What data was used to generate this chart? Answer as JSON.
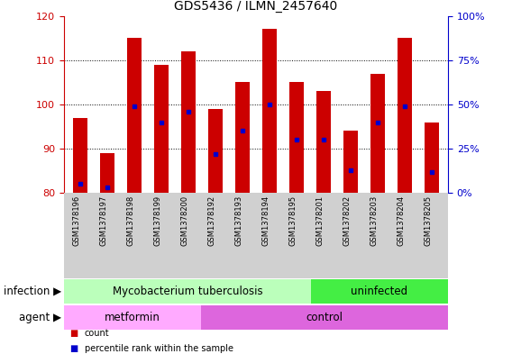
{
  "title": "GDS5436 / ILMN_2457640",
  "samples": [
    "GSM1378196",
    "GSM1378197",
    "GSM1378198",
    "GSM1378199",
    "GSM1378200",
    "GSM1378192",
    "GSM1378193",
    "GSM1378194",
    "GSM1378195",
    "GSM1378201",
    "GSM1378202",
    "GSM1378203",
    "GSM1378204",
    "GSM1378205"
  ],
  "bar_tops": [
    97,
    89,
    115,
    109,
    112,
    99,
    105,
    117,
    105,
    103,
    94,
    107,
    115,
    96
  ],
  "bar_bottom": 80,
  "percentile_values": [
    5,
    3,
    49,
    40,
    46,
    22,
    35,
    50,
    30,
    30,
    13,
    40,
    49,
    12
  ],
  "bar_color": "#cc0000",
  "dot_color": "#0000cc",
  "ylim_left": [
    80,
    120
  ],
  "ylim_right": [
    0,
    100
  ],
  "yticks_left": [
    80,
    90,
    100,
    110,
    120
  ],
  "yticks_right": [
    0,
    25,
    50,
    75,
    100
  ],
  "ytick_labels_right": [
    "0%",
    "25%",
    "50%",
    "75%",
    "100%"
  ],
  "left_axis_color": "#cc0000",
  "right_axis_color": "#0000cc",
  "grid_color": "#000000",
  "background_color": "#ffffff",
  "plot_bg_color": "#ffffff",
  "infection_groups": [
    {
      "label": "Mycobacterium tuberculosis",
      "start": 0,
      "end": 9,
      "color": "#bbffbb"
    },
    {
      "label": "uninfected",
      "start": 9,
      "end": 14,
      "color": "#44ee44"
    }
  ],
  "agent_groups": [
    {
      "label": "metformin",
      "start": 0,
      "end": 5,
      "color": "#ffaaff"
    },
    {
      "label": "control",
      "start": 5,
      "end": 14,
      "color": "#dd66dd"
    }
  ],
  "infection_label": "infection",
  "agent_label": "agent",
  "legend_count_color": "#cc0000",
  "legend_percentile_color": "#0000cc",
  "legend_count_text": "count",
  "legend_percentile_text": "percentile rank within the sample",
  "title_fontsize": 10,
  "tick_fontsize": 8,
  "annotation_fontsize": 8.5,
  "label_fontsize": 8.5,
  "sample_fontsize": 6.0
}
